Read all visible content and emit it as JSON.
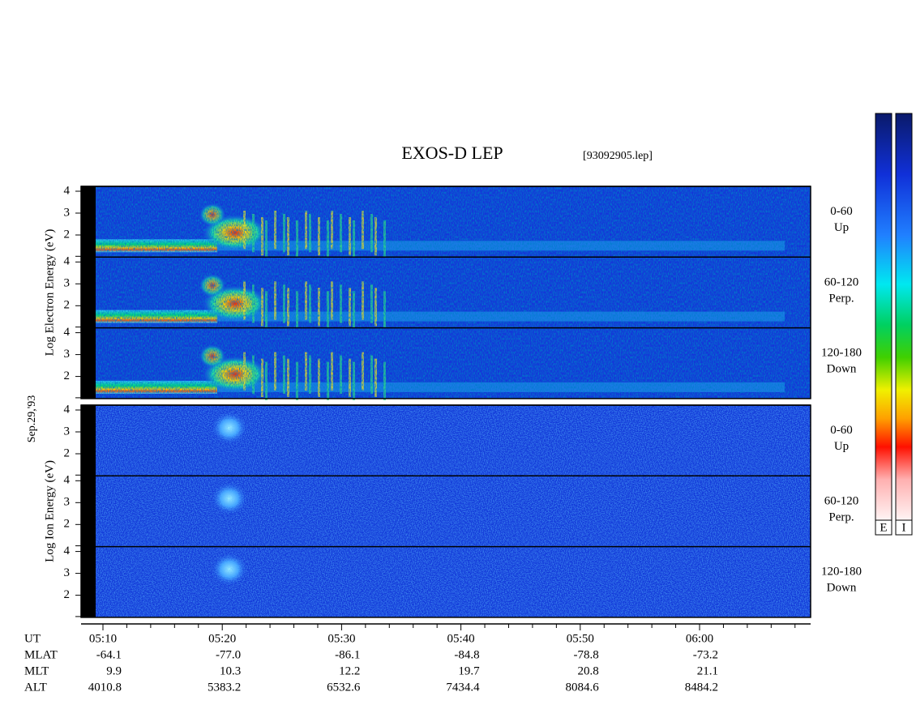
{
  "title": "EXOS-D LEP",
  "file_name": "[93092905.lep]",
  "date": "Sep.29,'93",
  "panels": [
    {
      "ylabel": "Log Electron Energy (eV)",
      "channels": [
        {
          "range": "0-60",
          "direction": "Up"
        },
        {
          "range": "60-120",
          "direction": "Perp."
        },
        {
          "range": "120-180",
          "direction": "Down"
        }
      ],
      "yticks": [
        4,
        3,
        2
      ]
    },
    {
      "ylabel": "Log Ion Energy (eV)",
      "channels": [
        {
          "range": "0-60",
          "direction": "Up"
        },
        {
          "range": "60-120",
          "direction": "Perp."
        },
        {
          "range": "120-180",
          "direction": "Down"
        }
      ],
      "yticks": [
        4,
        3,
        2
      ]
    }
  ],
  "colorbar_labels": [
    "E",
    "I"
  ],
  "orbit_table": {
    "row_labels": [
      "UT",
      "MLAT",
      "MLT",
      "ALT"
    ],
    "columns": [
      [
        "05:10",
        "-64.1",
        "9.9",
        "4010.8"
      ],
      [
        "05:20",
        "-77.0",
        "10.3",
        "5383.2"
      ],
      [
        "05:30",
        "-86.1",
        "12.2",
        "6532.6"
      ],
      [
        "05:40",
        "-84.8",
        "19.7",
        "7434.4"
      ],
      [
        "05:50",
        "-78.8",
        "20.8",
        "8084.6"
      ],
      [
        "06:00",
        "-73.2",
        "21.1",
        "8484.2"
      ]
    ]
  }
}
